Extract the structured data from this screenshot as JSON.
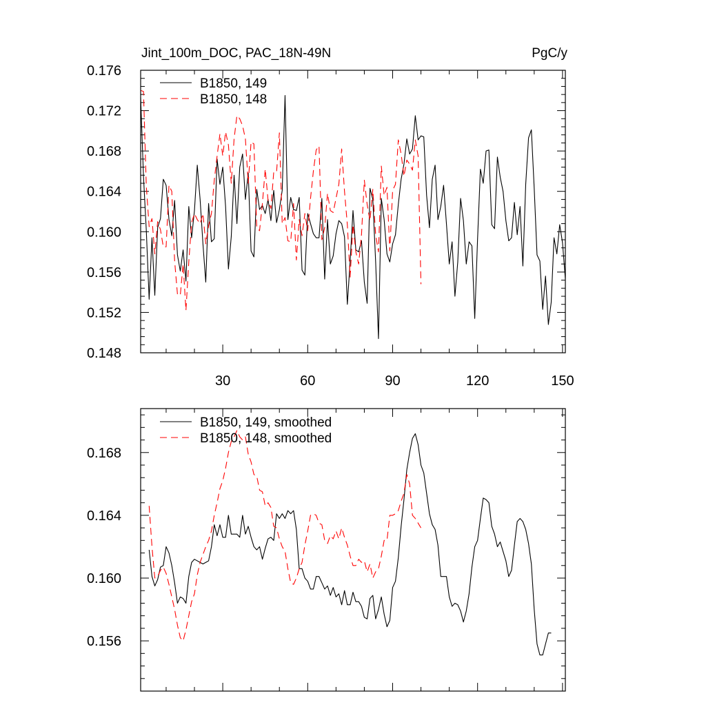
{
  "chart_data": [
    {
      "type": "line",
      "title": "Jint_100m_DOC, PAC_18N-49N",
      "units": "PgC/y",
      "xlim": [
        1,
        151
      ],
      "ylim": [
        0.148,
        0.176
      ],
      "xticks": [
        30,
        60,
        90,
        120,
        150
      ],
      "yticks": [
        0.148,
        0.152,
        0.156,
        0.16,
        0.164,
        0.168,
        0.172,
        0.176
      ],
      "ytick_labels": [
        "0.148",
        "0.152",
        "0.156",
        "0.160",
        "0.164",
        "0.168",
        "0.172",
        "0.176"
      ],
      "legend": "top-left",
      "series": [
        {
          "name": "B1850, 149",
          "color": "#000000",
          "dash": "solid",
          "x_start": 1,
          "values": [
            0.1733,
            0.1655,
            0.1601,
            0.1533,
            0.1594,
            0.1537,
            0.1604,
            0.1613,
            0.1652,
            0.1646,
            0.1612,
            0.1596,
            0.1631,
            0.1577,
            0.1561,
            0.1582,
            0.1551,
            0.1625,
            0.1594,
            0.1621,
            0.1666,
            0.1632,
            0.1588,
            0.155,
            0.1628,
            0.159,
            0.1593,
            0.1672,
            0.1647,
            0.1664,
            0.1625,
            0.1563,
            0.1595,
            0.1656,
            0.1608,
            0.1664,
            0.1677,
            0.1632,
            0.1658,
            0.1581,
            0.1575,
            0.1642,
            0.1622,
            0.1626,
            0.1618,
            0.1632,
            0.1611,
            0.1641,
            0.1609,
            0.1622,
            0.1641,
            0.1735,
            0.1612,
            0.1634,
            0.1622,
            0.1621,
            0.1634,
            0.1562,
            0.1557,
            0.1618,
            0.1608,
            0.1598,
            0.1594,
            0.1594,
            0.1633,
            0.1553,
            0.1612,
            0.1568,
            0.1576,
            0.1598,
            0.1611,
            0.1608,
            0.1595,
            0.1528,
            0.1571,
            0.1621,
            0.1582,
            0.158,
            0.1591,
            0.155,
            0.1529,
            0.1643,
            0.1632,
            0.157,
            0.1494,
            0.1633,
            0.1612,
            0.1578,
            0.157,
            0.1588,
            0.1597,
            0.1627,
            0.1652,
            0.1667,
            0.1692,
            0.1677,
            0.1682,
            0.1715,
            0.1691,
            0.1695,
            0.1694,
            0.1636,
            0.1604,
            0.1652,
            0.1666,
            0.1612,
            0.1625,
            0.1646,
            0.1608,
            0.1568,
            0.159,
            0.1536,
            0.157,
            0.1633,
            0.1611,
            0.1568,
            0.159,
            0.1586,
            0.1514,
            0.1593,
            0.1662,
            0.1648,
            0.168,
            0.1681,
            0.1607,
            0.1603,
            0.1674,
            0.1654,
            0.164,
            0.1611,
            0.1591,
            0.1594,
            0.1629,
            0.1597,
            0.1625,
            0.1566,
            0.1647,
            0.1693,
            0.1701,
            0.1643,
            0.1577,
            0.1571,
            0.1523,
            0.1556,
            0.1508,
            0.153,
            0.1594,
            0.1578,
            0.1607,
            0.1589,
            0.1553
          ]
        },
        {
          "name": "B1850, 148",
          "color": "#ff0000",
          "dash": "dashed",
          "x_start": 1,
          "values": [
            0.174,
            0.1739,
            0.1645,
            0.1605,
            0.1613,
            0.1578,
            0.161,
            0.1602,
            0.1585,
            0.1585,
            0.1646,
            0.164,
            0.1571,
            0.1538,
            0.1537,
            0.1568,
            0.1522,
            0.157,
            0.1609,
            0.1618,
            0.1612,
            0.1608,
            0.1618,
            0.1588,
            0.1606,
            0.1618,
            0.1651,
            0.1675,
            0.1697,
            0.1675,
            0.1699,
            0.1686,
            0.1648,
            0.1692,
            0.1715,
            0.1712,
            0.1705,
            0.1692,
            0.1648,
            0.1689,
            0.1687,
            0.1604,
            0.1601,
            0.1628,
            0.1662,
            0.1631,
            0.1623,
            0.1659,
            0.1659,
            0.1698,
            0.1608,
            0.1614,
            0.1591,
            0.159,
            0.1628,
            0.1572,
            0.1612,
            0.1596,
            0.1618,
            0.1601,
            0.1633,
            0.166,
            0.1681,
            0.1685,
            0.1592,
            0.1604,
            0.1638,
            0.1621,
            0.1619,
            0.1633,
            0.1647,
            0.1682,
            0.164,
            0.1607,
            0.1555,
            0.1607,
            0.158,
            0.1568,
            0.1597,
            0.1651,
            0.1627,
            0.1611,
            0.1642,
            0.1597,
            0.158,
            0.1665,
            0.1636,
            0.1644,
            0.1581,
            0.1641,
            0.1647,
            0.1691,
            0.1677,
            0.1655,
            0.1671,
            0.1667,
            0.1661,
            0.1691,
            0.1675,
            0.1548
          ]
        }
      ]
    },
    {
      "type": "line",
      "xlim": [
        1,
        151
      ],
      "ylim": [
        0.1528,
        0.1708
      ],
      "xticks": [
        30,
        60,
        90,
        120,
        150
      ],
      "yticks": [
        0.156,
        0.16,
        0.164,
        0.168
      ],
      "ytick_labels": [
        "0.156",
        "0.160",
        "0.164",
        "0.168"
      ],
      "legend": "top-left",
      "series": [
        {
          "name": "B1850, 149, smoothed",
          "color": "#000000",
          "dash": "solid",
          "x_start": 4,
          "values": [
            0.1618,
            0.1601,
            0.1595,
            0.1599,
            0.1607,
            0.1608,
            0.162,
            0.1616,
            0.1608,
            0.1597,
            0.1584,
            0.1588,
            0.1587,
            0.1584,
            0.1601,
            0.161,
            0.1612,
            0.1611,
            0.161,
            0.1609,
            0.161,
            0.1611,
            0.162,
            0.1634,
            0.1627,
            0.1634,
            0.1626,
            0.1626,
            0.164,
            0.1628,
            0.1628,
            0.1628,
            0.1626,
            0.164,
            0.1628,
            0.1633,
            0.1626,
            0.162,
            0.1618,
            0.162,
            0.1612,
            0.1619,
            0.1625,
            0.1626,
            0.1624,
            0.1641,
            0.1638,
            0.1641,
            0.1638,
            0.1643,
            0.1641,
            0.1643,
            0.1631,
            0.1606,
            0.1606,
            0.16,
            0.1598,
            0.1593,
            0.1593,
            0.1601,
            0.1601,
            0.1597,
            0.1593,
            0.1595,
            0.1589,
            0.1594,
            0.1588,
            0.159,
            0.1583,
            0.1592,
            0.1583,
            0.1583,
            0.1591,
            0.1585,
            0.1585,
            0.1582,
            0.1575,
            0.1574,
            0.1587,
            0.1589,
            0.1574,
            0.158,
            0.1588,
            0.1577,
            0.1569,
            0.1573,
            0.1594,
            0.1598,
            0.1613,
            0.1633,
            0.165,
            0.1669,
            0.168,
            0.1689,
            0.1692,
            0.1685,
            0.1672,
            0.1667,
            0.1654,
            0.1641,
            0.1634,
            0.1631,
            0.1621,
            0.1601,
            0.1601,
            0.1601,
            0.1588,
            0.1582,
            0.1584,
            0.1583,
            0.1579,
            0.1572,
            0.1579,
            0.159,
            0.1607,
            0.162,
            0.1624,
            0.1638,
            0.1651,
            0.165,
            0.1648,
            0.1633,
            0.1628,
            0.162,
            0.1623,
            0.1617,
            0.1611,
            0.1601,
            0.1605,
            0.1621,
            0.1636,
            0.1638,
            0.1636,
            0.1631,
            0.1622,
            0.1609,
            0.158,
            0.1558,
            0.1551,
            0.1551,
            0.1558,
            0.1565,
            0.1565
          ]
        },
        {
          "name": "B1850, 148, smoothed",
          "color": "#ff0000",
          "dash": "dashed",
          "x_start": 4,
          "values": [
            0.1646,
            0.162,
            0.16,
            0.1601,
            0.1605,
            0.1607,
            0.1603,
            0.1596,
            0.1588,
            0.158,
            0.157,
            0.1562,
            0.156,
            0.1567,
            0.1576,
            0.1585,
            0.159,
            0.1602,
            0.161,
            0.1615,
            0.162,
            0.1624,
            0.163,
            0.164,
            0.1648,
            0.1657,
            0.1662,
            0.167,
            0.168,
            0.1687,
            0.169,
            0.1694,
            0.169,
            0.1688,
            0.169,
            0.1679,
            0.1674,
            0.1666,
            0.1665,
            0.1656,
            0.1655,
            0.1646,
            0.1648,
            0.1645,
            0.1633,
            0.1632,
            0.1625,
            0.162,
            0.1617,
            0.1606,
            0.1597,
            0.1596,
            0.16,
            0.1606,
            0.161,
            0.1621,
            0.163,
            0.164,
            0.1641,
            0.164,
            0.1635,
            0.1634,
            0.1624,
            0.1622,
            0.1627,
            0.1625,
            0.163,
            0.1625,
            0.1632,
            0.1626,
            0.1621,
            0.1614,
            0.1608,
            0.1608,
            0.1612,
            0.161,
            0.1611,
            0.1604,
            0.1609,
            0.16,
            0.1604,
            0.1606,
            0.1614,
            0.1624,
            0.1624,
            0.164,
            0.164,
            0.1641,
            0.1643,
            0.1649,
            0.1654,
            0.1666,
            0.166,
            0.164,
            0.1638,
            0.1635,
            0.1632
          ]
        }
      ]
    }
  ]
}
